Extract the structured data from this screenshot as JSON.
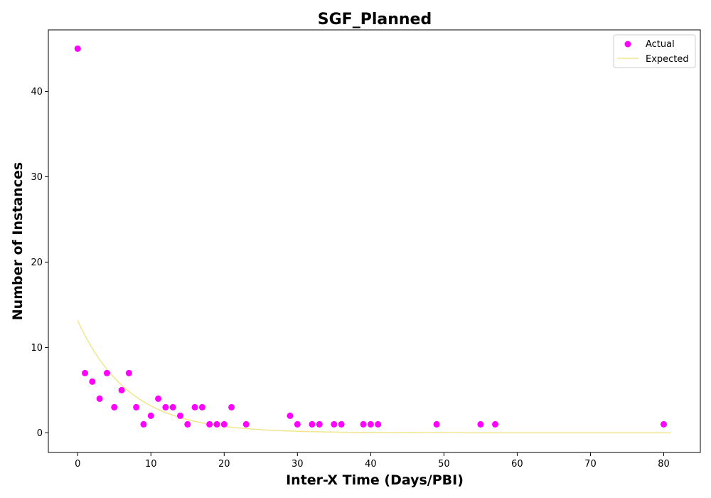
{
  "chart_data": {
    "type": "scatter",
    "title": "SGF_Planned",
    "xlabel": "Inter-X Time (Days/PBI)",
    "ylabel": "Number of Instances",
    "xlim": [
      -4,
      85
    ],
    "ylim": [
      -2.3,
      47.2
    ],
    "xticks": [
      0,
      10,
      20,
      30,
      40,
      50,
      60,
      70,
      80
    ],
    "yticks": [
      0,
      10,
      20,
      30,
      40
    ],
    "grid": false,
    "legend_position": "top-right",
    "series": [
      {
        "name": "Actual",
        "kind": "scatter",
        "color": "#ff00ff",
        "x": [
          0,
          1,
          2,
          3,
          4,
          5,
          6,
          7,
          8,
          9,
          10,
          11,
          12,
          13,
          14,
          15,
          16,
          17,
          18,
          19,
          20,
          21,
          23,
          29,
          30,
          32,
          33,
          35,
          36,
          39,
          40,
          41,
          49,
          55,
          57,
          80
        ],
        "y": [
          45,
          7,
          6,
          4,
          7,
          3,
          5,
          7,
          3,
          1,
          2,
          4,
          3,
          3,
          2,
          1,
          3,
          3,
          1,
          1,
          1,
          3,
          1,
          2,
          1,
          1,
          1,
          1,
          1,
          1,
          1,
          1,
          1,
          1,
          1,
          1
        ]
      },
      {
        "name": "Expected",
        "kind": "line",
        "color": "#f0e68c",
        "model": "exponential",
        "amplitude": 13.15,
        "rate": 0.1425,
        "x_start": 0,
        "x_end": 81
      }
    ]
  }
}
